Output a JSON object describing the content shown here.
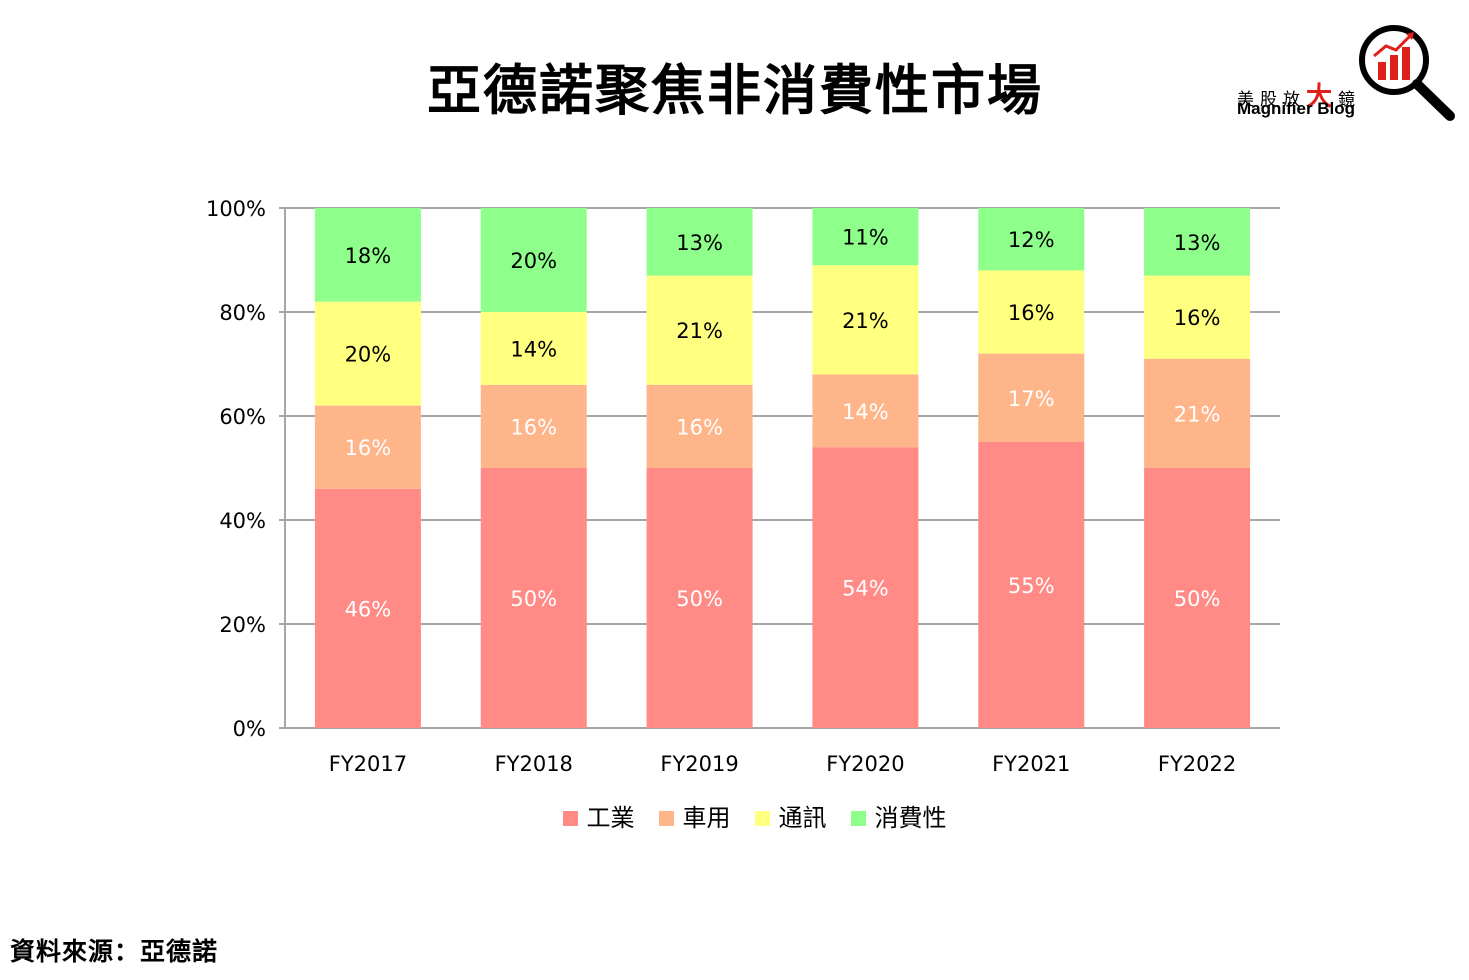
{
  "page_title": "亞德諾聚焦非消費性市場",
  "brand": {
    "name_zh_1": "美股放",
    "name_zh_2": "大",
    "name_zh_3": "鏡",
    "name_en": "Magnifier Blog",
    "icon": "magnifier-bar-chart-icon",
    "accent_color": "#e0201b"
  },
  "source_note": "資料來源：亞德諾",
  "chart_data": {
    "type": "bar",
    "stacked": true,
    "categories": [
      "FY2017",
      "FY2018",
      "FY2019",
      "FY2020",
      "FY2021",
      "FY2022"
    ],
    "series": [
      {
        "name": "工業",
        "values": [
          46,
          50,
          50,
          54,
          55,
          50
        ],
        "labels": [
          "46%",
          "50%",
          "50%",
          "54%",
          "55%",
          "50%"
        ],
        "color": "#ff8a86",
        "label_color": "#ffffff"
      },
      {
        "name": "車用",
        "values": [
          16,
          16,
          16,
          14,
          17,
          21
        ],
        "labels": [
          "16%",
          "16%",
          "16%",
          "14%",
          "17%",
          "21%"
        ],
        "color": "#ffb58a",
        "label_color": "#ffffff"
      },
      {
        "name": "通訊",
        "values": [
          20,
          14,
          21,
          21,
          16,
          16
        ],
        "labels": [
          "20%",
          "14%",
          "21%",
          "21%",
          "16%",
          "16%"
        ],
        "color": "#ffff80",
        "label_color": "#000000"
      },
      {
        "name": "消費性",
        "values": [
          18,
          20,
          13,
          11,
          12,
          13
        ],
        "labels": [
          "18%",
          "20%",
          "13%",
          "11%",
          "12%",
          "13%"
        ],
        "color": "#8dff8a",
        "label_color": "#000000"
      }
    ],
    "ylim": [
      0,
      100
    ],
    "yticks": [
      0,
      20,
      40,
      60,
      80,
      100
    ],
    "ytick_labels": [
      "0%",
      "20%",
      "40%",
      "60%",
      "80%",
      "100%"
    ],
    "grid": true,
    "gridline_color": "#a6a6a6",
    "legend_position": "bottom"
  }
}
